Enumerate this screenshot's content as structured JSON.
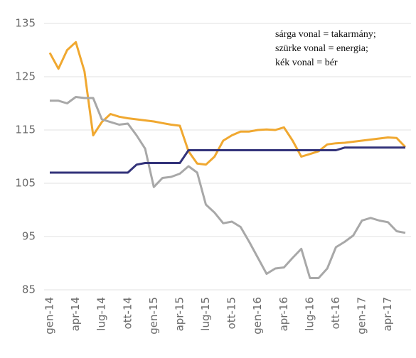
{
  "chart_data": {
    "type": "line",
    "categories": [
      "gen-14",
      null,
      null,
      "apr-14",
      null,
      null,
      "lug-14",
      null,
      null,
      "ott-14",
      null,
      null,
      "gen-15",
      null,
      null,
      "apr-15",
      null,
      null,
      "lug-15",
      null,
      null,
      "ott-15",
      null,
      null,
      "gen-16",
      null,
      null,
      "apr-16",
      null,
      null,
      "lug-16",
      null,
      null,
      "ott-16",
      null,
      null,
      "gen-17",
      null,
      null,
      "apr-17",
      null,
      null
    ],
    "series": [
      {
        "name": "sárga vonal = takarmány",
        "color": "#f0a830",
        "values": [
          129.5,
          126.5,
          130,
          131.5,
          126,
          114,
          116.5,
          118,
          117.5,
          117.2,
          117,
          116.8,
          116.6,
          116.3,
          116,
          115.8,
          111,
          108.7,
          108.5,
          110,
          113,
          114,
          114.7,
          114.7,
          115,
          115.1,
          115,
          115.5,
          113,
          110,
          110.5,
          111,
          112.3,
          112.5,
          112.6,
          112.8,
          113,
          113.2,
          113.4,
          113.6,
          113.5,
          111.8
        ]
      },
      {
        "name": "szürke vonal = energia",
        "color": "#a8a8a8",
        "values": [
          120.5,
          120.5,
          120,
          121.2,
          121,
          121,
          117,
          116.5,
          116,
          116.2,
          114,
          111.5,
          104.3,
          106,
          106.2,
          106.8,
          108.2,
          107,
          101,
          99.5,
          97.5,
          97.8,
          96.8,
          94,
          91,
          88,
          89,
          89.2,
          91,
          92.7,
          87.2,
          87.2,
          89,
          93,
          94,
          95.2,
          98,
          98.5,
          98,
          97.7,
          96,
          95.7
        ]
      },
      {
        "name": "kék vonal = bér",
        "color": "#33337a",
        "values": [
          107,
          107,
          107,
          107,
          107,
          107,
          107,
          107,
          107,
          107,
          108.5,
          108.8,
          108.8,
          108.8,
          108.8,
          108.8,
          111.2,
          111.2,
          111.2,
          111.2,
          111.2,
          111.2,
          111.2,
          111.2,
          111.2,
          111.2,
          111.2,
          111.2,
          111.2,
          111.2,
          111.2,
          111.2,
          111.2,
          111.2,
          111.7,
          111.7,
          111.7,
          111.7,
          111.7,
          111.7,
          111.7,
          111.7
        ]
      }
    ],
    "annotation": [
      "sárga vonal = takarmány;",
      "szürke vonal = energia;",
      "kék vonal = bér"
    ],
    "ylim": [
      85,
      135
    ],
    "yticks": [
      85,
      95,
      105,
      115,
      125,
      135
    ],
    "grid": true
  }
}
